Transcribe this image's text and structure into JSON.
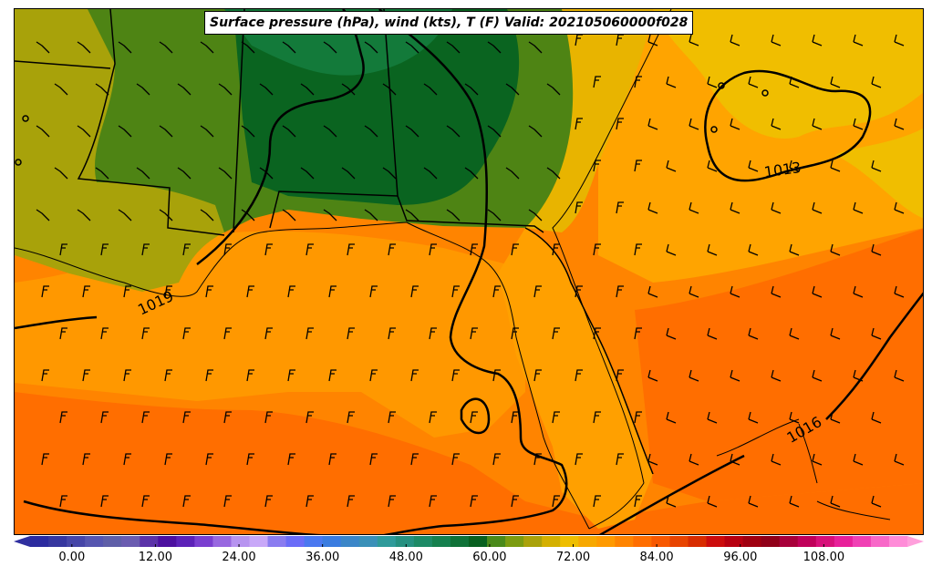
{
  "title": "Surface pressure (hPa), wind (kts), T (F) Valid: 202105060000f028",
  "isobar_labels": [
    "1019",
    "1013",
    "1016"
  ],
  "colorbar": {
    "ticks": [
      "0.00",
      "12.00",
      "24.00",
      "36.00",
      "48.00",
      "60.00",
      "72.00",
      "84.00",
      "96.00",
      "108.00"
    ],
    "tick_values": [
      0,
      12,
      24,
      36,
      48,
      60,
      72,
      84,
      96,
      108
    ],
    "min": -6,
    "max": 120,
    "step": 3,
    "colors": [
      "#2b2b9f",
      "#36379f",
      "#4646a8",
      "#5656b0",
      "#5f5fa8",
      "#6a5cb0",
      "#5a32a8",
      "#4c10a0",
      "#5c22b8",
      "#7a3fd0",
      "#9868e0",
      "#b794f0",
      "#c8a8f8",
      "#8a7cf0",
      "#6a6cf8",
      "#4a78f0",
      "#3a7ce0",
      "#3b86c8",
      "#3a90b8",
      "#2f9a9a",
      "#259080",
      "#1d8a66",
      "#15804e",
      "#0f7238",
      "#086020",
      "#4a8a1a",
      "#7c9c10",
      "#aaa20a",
      "#d4b000",
      "#eebe00",
      "#f7a800",
      "#ff9a00",
      "#ff8400",
      "#ff6e00",
      "#f85800",
      "#e84400",
      "#d82c00",
      "#cc0c0c",
      "#b80010",
      "#a00010",
      "#900018",
      "#a8003a",
      "#c0005a",
      "#d8107a",
      "#e8209a",
      "#f040b4",
      "#f868c8",
      "#ff8cd8"
    ],
    "under_color": "#3030a0",
    "over_color": "#ffa0dc"
  }
}
